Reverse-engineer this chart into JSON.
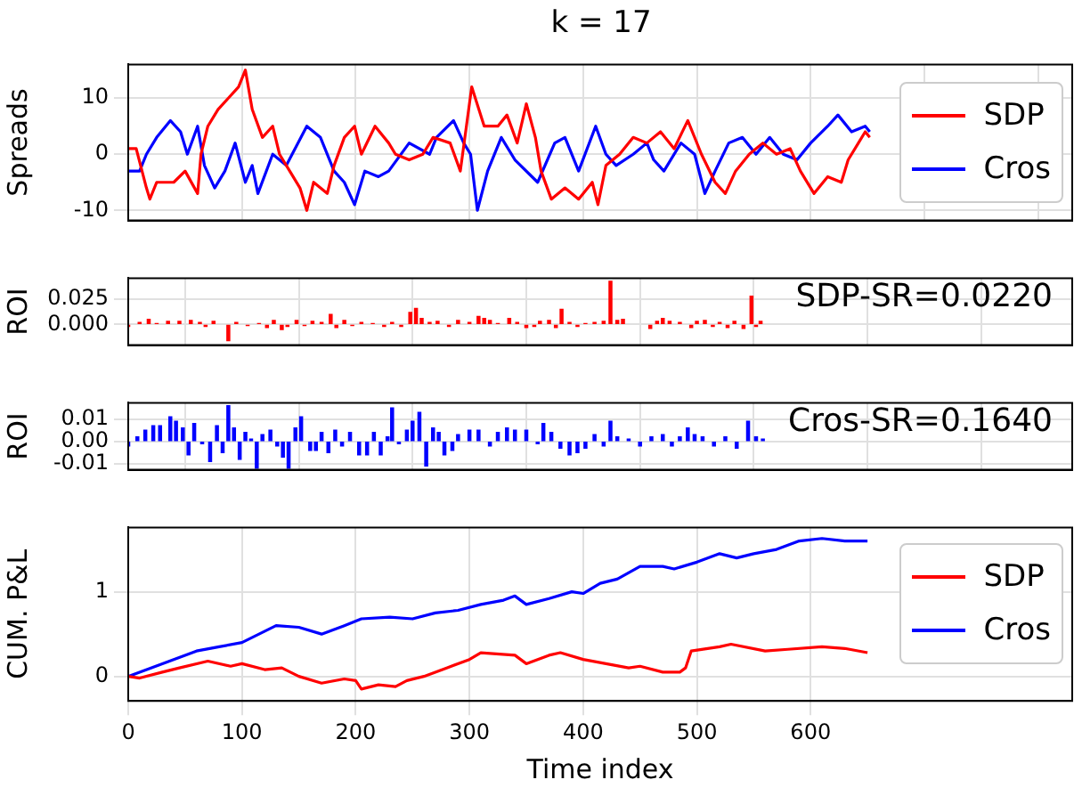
{
  "chart_data": [
    {
      "type": "line",
      "title": "k = 17",
      "ylabel": "Spreads",
      "xlim": [
        0,
        830
      ],
      "ylim": [
        -11.8,
        16
      ],
      "yticks": [
        -10,
        0,
        10
      ],
      "grid": true,
      "legend": "right",
      "tick_labels": "y",
      "series": [
        {
          "name": "SDP",
          "color": "#ff0000",
          "x": [
            0,
            7,
            16,
            19,
            25,
            40,
            50,
            61,
            64,
            70,
            79,
            88,
            97,
            103,
            109,
            118,
            127,
            133,
            142,
            151,
            157,
            163,
            175,
            181,
            190,
            199,
            205,
            217,
            229,
            235,
            247,
            259,
            268,
            283,
            292,
            302,
            313,
            325,
            333,
            342,
            350,
            358,
            363,
            372,
            384,
            396,
            408,
            413,
            420,
            432,
            444,
            456,
            468,
            480,
            492,
            504,
            516,
            525,
            534,
            546,
            558,
            570,
            582,
            591,
            603,
            615,
            627,
            633,
            642,
            648,
            652
          ],
          "values": [
            1,
            1,
            -6,
            -8,
            -5,
            -5,
            -3,
            -7,
            0,
            5,
            8,
            10,
            12,
            15,
            8,
            3,
            5,
            0,
            -3,
            -6,
            -10,
            -5,
            -7,
            -2,
            3,
            5,
            0,
            5,
            2,
            0,
            -1,
            0,
            3,
            2,
            -3,
            12,
            5,
            5,
            7,
            2,
            9,
            3,
            -3,
            -8,
            -6,
            -8,
            -5,
            -9,
            -2,
            0,
            3,
            2,
            4,
            1,
            6,
            0,
            -5,
            -7,
            -3,
            0,
            2,
            0,
            1,
            -3,
            -7,
            -4,
            -5,
            -1,
            2,
            4,
            3
          ]
        },
        {
          "name": "Cros",
          "color": "#0000ff",
          "x": [
            0,
            10,
            16,
            25,
            37,
            46,
            52,
            61,
            67,
            76,
            85,
            94,
            103,
            109,
            114,
            127,
            139,
            157,
            169,
            181,
            190,
            199,
            208,
            220,
            229,
            247,
            265,
            271,
            286,
            295,
            301,
            307,
            316,
            328,
            340,
            360,
            375,
            384,
            396,
            411,
            420,
            429,
            444,
            456,
            462,
            471,
            486,
            498,
            507,
            516,
            528,
            540,
            552,
            564,
            576,
            588,
            600,
            615,
            624,
            636,
            648,
            652
          ],
          "values": [
            -3,
            -3,
            0,
            3,
            6,
            4,
            0,
            5,
            -2,
            -6,
            -3,
            2,
            -5,
            -2,
            -7,
            0,
            -2,
            5,
            3,
            -3,
            -5,
            -9,
            -3,
            -4,
            -3,
            2,
            0,
            3,
            6,
            2,
            0,
            -10,
            -3,
            3,
            -1,
            -5,
            2,
            3,
            -3,
            5,
            0,
            -2,
            0,
            2,
            -1,
            -3,
            2,
            0,
            -7,
            -3,
            2,
            3,
            0,
            3,
            0,
            -1,
            2,
            5,
            7,
            4,
            5,
            4
          ]
        }
      ]
    },
    {
      "type": "bar",
      "ylabel": "ROI",
      "xlim": [
        0,
        830
      ],
      "ylim": [
        -0.0205,
        0.046
      ],
      "yticks": [
        {
          "value": 0,
          "label": "0.000"
        },
        0.025
      ],
      "grid": true,
      "tick_labels": "y",
      "annotations": [
        "SDP-SR=0.0220"
      ],
      "series": [
        {
          "color": "#ff0000",
          "x": [
            0,
            10,
            18,
            25,
            35,
            45,
            55,
            63,
            68,
            75,
            88,
            95,
            105,
            115,
            122,
            128,
            135,
            140,
            148,
            155,
            162,
            170,
            178,
            183,
            190,
            197,
            205,
            215,
            225,
            232,
            240,
            248,
            253,
            258,
            265,
            272,
            282,
            290,
            300,
            308,
            313,
            318,
            325,
            335,
            342,
            350,
            357,
            362,
            370,
            376,
            381,
            388,
            395,
            402,
            410,
            418,
            424,
            430,
            435,
            459,
            465,
            470,
            476,
            485,
            495,
            500,
            507,
            514,
            520,
            527,
            533,
            541,
            548,
            552,
            556
          ],
          "values": [
            -0.002,
            0.002,
            0.005,
            0.001,
            0.003,
            0.003,
            0.004,
            0.002,
            -0.002,
            0.003,
            -0.016,
            0.002,
            -0.001,
            0.001,
            -0.003,
            0.004,
            -0.005,
            -0.002,
            0.004,
            -0.001,
            0.003,
            0.002,
            0.01,
            -0.003,
            0.004,
            -0.001,
            0.002,
            0.001,
            -0.002,
            0.002,
            -0.002,
            0.012,
            0.016,
            0.006,
            0.002,
            0.003,
            -0.002,
            0.004,
            0.002,
            0.008,
            0.006,
            0.004,
            0.001,
            0.006,
            0.002,
            -0.003,
            -0.002,
            0.003,
            0.004,
            -0.003,
            0.015,
            0.002,
            -0.002,
            0.001,
            0.002,
            0.003,
            0.043,
            0.004,
            0.005,
            -0.004,
            0.003,
            0.006,
            0.003,
            0.002,
            -0.003,
            0.003,
            0.004,
            -0.002,
            0.002,
            -0.003,
            0.003,
            -0.004,
            0.028,
            -0.002,
            0.003
          ]
        }
      ]
    },
    {
      "type": "bar",
      "ylabel": "ROI",
      "xlim": [
        0,
        830
      ],
      "ylim": [
        -0.0127,
        0.0173
      ],
      "yticks": [
        -0.01,
        {
          "value": 0,
          "label": "0.00"
        },
        0.01
      ],
      "grid": true,
      "tick_labels": "y",
      "annotations": [
        "Cros-SR=0.1640"
      ],
      "series": [
        {
          "color": "#0000ff",
          "x": [
            0,
            8,
            15,
            22,
            28,
            37,
            42,
            48,
            53,
            58,
            65,
            72,
            78,
            83,
            88,
            93,
            98,
            103,
            108,
            113,
            118,
            125,
            131,
            136,
            141,
            147,
            152,
            160,
            165,
            170,
            176,
            182,
            188,
            195,
            203,
            210,
            216,
            222,
            228,
            232,
            238,
            245,
            250,
            256,
            262,
            268,
            273,
            278,
            285,
            290,
            300,
            308,
            318,
            325,
            333,
            340,
            350,
            360,
            365,
            372,
            380,
            388,
            395,
            402,
            410,
            418,
            424,
            430,
            440,
            450,
            460,
            470,
            478,
            485,
            492,
            498,
            505,
            515,
            525,
            535,
            545,
            552,
            558
          ],
          "values": [
            -0.002,
            0.002,
            0.005,
            0.007,
            0.007,
            0.011,
            0.009,
            0.006,
            -0.006,
            0.008,
            -0.001,
            -0.009,
            0.007,
            -0.005,
            0.016,
            0.006,
            -0.008,
            0.004,
            0.001,
            -0.012,
            0.003,
            0.005,
            -0.002,
            -0.007,
            -0.012,
            0.006,
            0.011,
            -0.004,
            -0.004,
            0.004,
            -0.005,
            0.005,
            -0.002,
            0.004,
            -0.006,
            -0.006,
            0.004,
            -0.006,
            0.002,
            0.015,
            -0.001,
            0.005,
            0.009,
            0.013,
            -0.011,
            0.006,
            0.004,
            -0.006,
            -0.004,
            0.003,
            0.005,
            0.005,
            -0.002,
            0.004,
            0.006,
            0.005,
            0.005,
            -0.001,
            0.008,
            0.004,
            -0.003,
            -0.006,
            -0.005,
            -0.003,
            0.003,
            -0.002,
            0.009,
            0.002,
            0.001,
            -0.002,
            0.002,
            0.003,
            -0.002,
            0.002,
            0.006,
            0.003,
            0.002,
            -0.002,
            0.002,
            -0.003,
            0.009,
            0.002,
            0.001
          ]
        }
      ]
    },
    {
      "type": "line",
      "xlabel": "Time index",
      "ylabel": "CUM. P&L",
      "xlim": [
        0,
        830
      ],
      "xticks": [
        0,
        100,
        200,
        300,
        400,
        500,
        600
      ],
      "ylim": [
        -0.29,
        1.76
      ],
      "yticks": [
        0,
        1
      ],
      "grid": true,
      "legend": "right",
      "series": [
        {
          "name": "SDP",
          "color": "#ff0000",
          "x": [
            0,
            10,
            30,
            45,
            70,
            90,
            100,
            120,
            135,
            150,
            170,
            190,
            200,
            205,
            220,
            235,
            245,
            260,
            280,
            300,
            310,
            340,
            350,
            370,
            380,
            400,
            420,
            440,
            450,
            470,
            485,
            490,
            495,
            520,
            530,
            560,
            580,
            610,
            630,
            650
          ],
          "values": [
            0,
            -0.02,
            0.05,
            0.1,
            0.18,
            0.12,
            0.15,
            0.08,
            0.1,
            0,
            -0.08,
            -0.03,
            -0.05,
            -0.15,
            -0.1,
            -0.12,
            -0.05,
            0,
            0.1,
            0.2,
            0.28,
            0.25,
            0.15,
            0.25,
            0.28,
            0.2,
            0.15,
            0.1,
            0.12,
            0.05,
            0.05,
            0.1,
            0.3,
            0.35,
            0.38,
            0.3,
            0.32,
            0.35,
            0.33,
            0.28
          ]
        },
        {
          "name": "Cros",
          "color": "#0000ff",
          "x": [
            0,
            20,
            40,
            60,
            80,
            100,
            115,
            130,
            150,
            170,
            190,
            205,
            230,
            250,
            270,
            290,
            310,
            330,
            340,
            350,
            370,
            390,
            400,
            415,
            430,
            450,
            470,
            480,
            500,
            520,
            535,
            550,
            570,
            590,
            610,
            630,
            650
          ],
          "values": [
            0,
            0.1,
            0.2,
            0.3,
            0.35,
            0.4,
            0.5,
            0.6,
            0.58,
            0.5,
            0.6,
            0.68,
            0.7,
            0.68,
            0.75,
            0.78,
            0.85,
            0.9,
            0.95,
            0.85,
            0.92,
            1.0,
            0.98,
            1.1,
            1.15,
            1.3,
            1.3,
            1.27,
            1.35,
            1.45,
            1.4,
            1.45,
            1.5,
            1.6,
            1.63,
            1.6,
            1.6
          ]
        }
      ]
    }
  ]
}
